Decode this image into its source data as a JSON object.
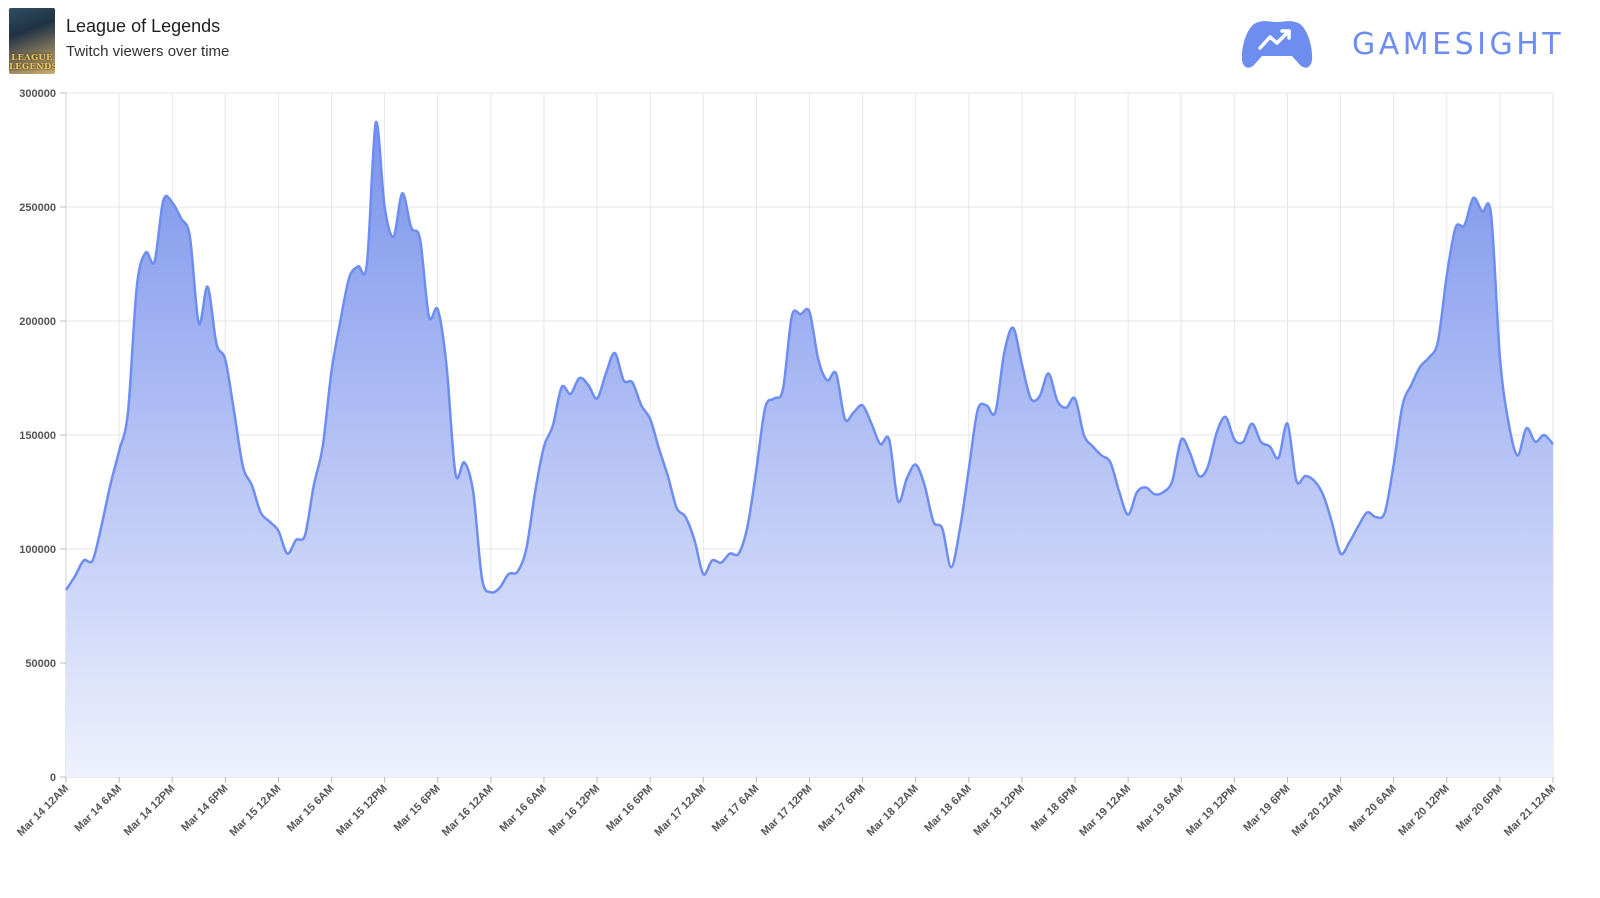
{
  "header": {
    "game_title": "League of Legends",
    "subtitle": "Twitch viewers over time",
    "thumbnail_text_line1": "LEAGUE",
    "thumbnail_text_line2": "LEGENDS",
    "brand_name": "GAMESIGHT",
    "brand_icon": "gamepad-trend-icon"
  },
  "colors": {
    "line": "#6d8ef0",
    "fill_top": "#7b93ec",
    "fill_bottom": "#eef1fd",
    "grid": "#e6e6e6",
    "brand": "#6d8ef0"
  },
  "chart_data": {
    "type": "area",
    "title": "",
    "xlabel": "",
    "ylabel": "",
    "ylim": [
      0,
      300000
    ],
    "y_ticks": [
      0,
      50000,
      100000,
      150000,
      200000,
      250000,
      300000
    ],
    "x_range_hours": [
      0,
      168
    ],
    "x_tick_labels": [
      "Mar 14 12AM",
      "Mar 14 6AM",
      "Mar 14 12PM",
      "Mar 14 6PM",
      "Mar 15 12AM",
      "Mar 15 6AM",
      "Mar 15 12PM",
      "Mar 15 6PM",
      "Mar 16 12AM",
      "Mar 16 6AM",
      "Mar 16 12PM",
      "Mar 16 6PM",
      "Mar 17 12AM",
      "Mar 17 6AM",
      "Mar 17 12PM",
      "Mar 17 6PM",
      "Mar 18 12AM",
      "Mar 18 6AM",
      "Mar 18 12PM",
      "Mar 18 6PM",
      "Mar 19 12AM",
      "Mar 19 6AM",
      "Mar 19 12PM",
      "Mar 19 6PM",
      "Mar 20 12AM",
      "Mar 20 6AM",
      "Mar 20 12PM",
      "Mar 20 6PM",
      "Mar 21 12AM"
    ],
    "grid": true,
    "legend": "none",
    "series": [
      {
        "points": [
          [
            0,
            82000
          ],
          [
            1,
            88000
          ],
          [
            2,
            95000
          ],
          [
            3,
            95000
          ],
          [
            4,
            110000
          ],
          [
            5,
            128000
          ],
          [
            6,
            143000
          ],
          [
            7,
            160000
          ],
          [
            8,
            215000
          ],
          [
            9,
            230000
          ],
          [
            10,
            226000
          ],
          [
            11,
            253000
          ],
          [
            12,
            252000
          ],
          [
            13,
            245000
          ],
          [
            14,
            237000
          ],
          [
            15,
            199000
          ],
          [
            16,
            215000
          ],
          [
            17,
            190000
          ],
          [
            18,
            183000
          ],
          [
            19,
            160000
          ],
          [
            20,
            136000
          ],
          [
            21,
            128000
          ],
          [
            22,
            116000
          ],
          [
            23,
            112000
          ],
          [
            24,
            108000
          ],
          [
            25,
            98000
          ],
          [
            26,
            104000
          ],
          [
            27,
            106000
          ],
          [
            28,
            128000
          ],
          [
            29,
            145000
          ],
          [
            30,
            178000
          ],
          [
            31,
            200000
          ],
          [
            32,
            219000
          ],
          [
            33,
            224000
          ],
          [
            34,
            225000
          ],
          [
            35,
            287000
          ],
          [
            36,
            250000
          ],
          [
            37,
            237000
          ],
          [
            38,
            256000
          ],
          [
            39,
            241000
          ],
          [
            40,
            236000
          ],
          [
            41,
            202000
          ],
          [
            42,
            205000
          ],
          [
            43,
            180000
          ],
          [
            44,
            133000
          ],
          [
            45,
            138000
          ],
          [
            46,
            125000
          ],
          [
            47,
            87000
          ],
          [
            48,
            81000
          ],
          [
            49,
            83000
          ],
          [
            50,
            89000
          ],
          [
            51,
            90000
          ],
          [
            52,
            100000
          ],
          [
            53,
            125000
          ],
          [
            54,
            145000
          ],
          [
            55,
            154000
          ],
          [
            56,
            171000
          ],
          [
            57,
            168000
          ],
          [
            58,
            175000
          ],
          [
            59,
            172000
          ],
          [
            60,
            166000
          ],
          [
            61,
            177000
          ],
          [
            62,
            186000
          ],
          [
            63,
            174000
          ],
          [
            64,
            173000
          ],
          [
            65,
            163000
          ],
          [
            66,
            157000
          ],
          [
            67,
            144000
          ],
          [
            68,
            132000
          ],
          [
            69,
            118000
          ],
          [
            70,
            114000
          ],
          [
            71,
            104000
          ],
          [
            72,
            89000
          ],
          [
            73,
            95000
          ],
          [
            74,
            94000
          ],
          [
            75,
            98000
          ],
          [
            76,
            98000
          ],
          [
            77,
            110000
          ],
          [
            78,
            135000
          ],
          [
            79,
            162000
          ],
          [
            80,
            166000
          ],
          [
            81,
            170000
          ],
          [
            82,
            202000
          ],
          [
            83,
            203000
          ],
          [
            84,
            204000
          ],
          [
            85,
            183000
          ],
          [
            86,
            174000
          ],
          [
            87,
            177000
          ],
          [
            88,
            157000
          ],
          [
            89,
            160000
          ],
          [
            90,
            163000
          ],
          [
            91,
            155000
          ],
          [
            92,
            146000
          ],
          [
            93,
            148000
          ],
          [
            94,
            121000
          ],
          [
            95,
            131000
          ],
          [
            96,
            137000
          ],
          [
            97,
            128000
          ],
          [
            98,
            112000
          ],
          [
            99,
            109000
          ],
          [
            100,
            92000
          ],
          [
            101,
            109000
          ],
          [
            102,
            135000
          ],
          [
            103,
            161000
          ],
          [
            104,
            163000
          ],
          [
            105,
            160000
          ],
          [
            106,
            186000
          ],
          [
            107,
            197000
          ],
          [
            108,
            181000
          ],
          [
            109,
            166000
          ],
          [
            110,
            167000
          ],
          [
            111,
            177000
          ],
          [
            112,
            165000
          ],
          [
            113,
            162000
          ],
          [
            114,
            166000
          ],
          [
            115,
            150000
          ],
          [
            116,
            145000
          ],
          [
            117,
            141000
          ],
          [
            118,
            138000
          ],
          [
            119,
            125000
          ],
          [
            120,
            115000
          ],
          [
            121,
            125000
          ],
          [
            122,
            127000
          ],
          [
            123,
            124000
          ],
          [
            124,
            125000
          ],
          [
            125,
            130000
          ],
          [
            126,
            148000
          ],
          [
            127,
            142000
          ],
          [
            128,
            132000
          ],
          [
            129,
            136000
          ],
          [
            130,
            151000
          ],
          [
            131,
            158000
          ],
          [
            132,
            148000
          ],
          [
            133,
            147000
          ],
          [
            134,
            155000
          ],
          [
            135,
            147000
          ],
          [
            136,
            145000
          ],
          [
            137,
            140000
          ],
          [
            138,
            155000
          ],
          [
            139,
            130000
          ],
          [
            140,
            132000
          ],
          [
            141,
            130000
          ],
          [
            142,
            124000
          ],
          [
            143,
            112000
          ],
          [
            144,
            98000
          ],
          [
            145,
            103000
          ],
          [
            146,
            110000
          ],
          [
            147,
            116000
          ],
          [
            148,
            114000
          ],
          [
            149,
            116000
          ],
          [
            150,
            137000
          ],
          [
            151,
            163000
          ],
          [
            152,
            172000
          ],
          [
            153,
            180000
          ],
          [
            154,
            184000
          ],
          [
            155,
            191000
          ],
          [
            156,
            220000
          ],
          [
            157,
            241000
          ],
          [
            158,
            242000
          ],
          [
            159,
            254000
          ],
          [
            160,
            248000
          ],
          [
            161,
            247000
          ],
          [
            162,
            184000
          ],
          [
            163,
            155000
          ],
          [
            164,
            141000
          ],
          [
            165,
            153000
          ],
          [
            166,
            147000
          ],
          [
            167,
            150000
          ],
          [
            168,
            146000
          ]
        ]
      }
    ]
  }
}
